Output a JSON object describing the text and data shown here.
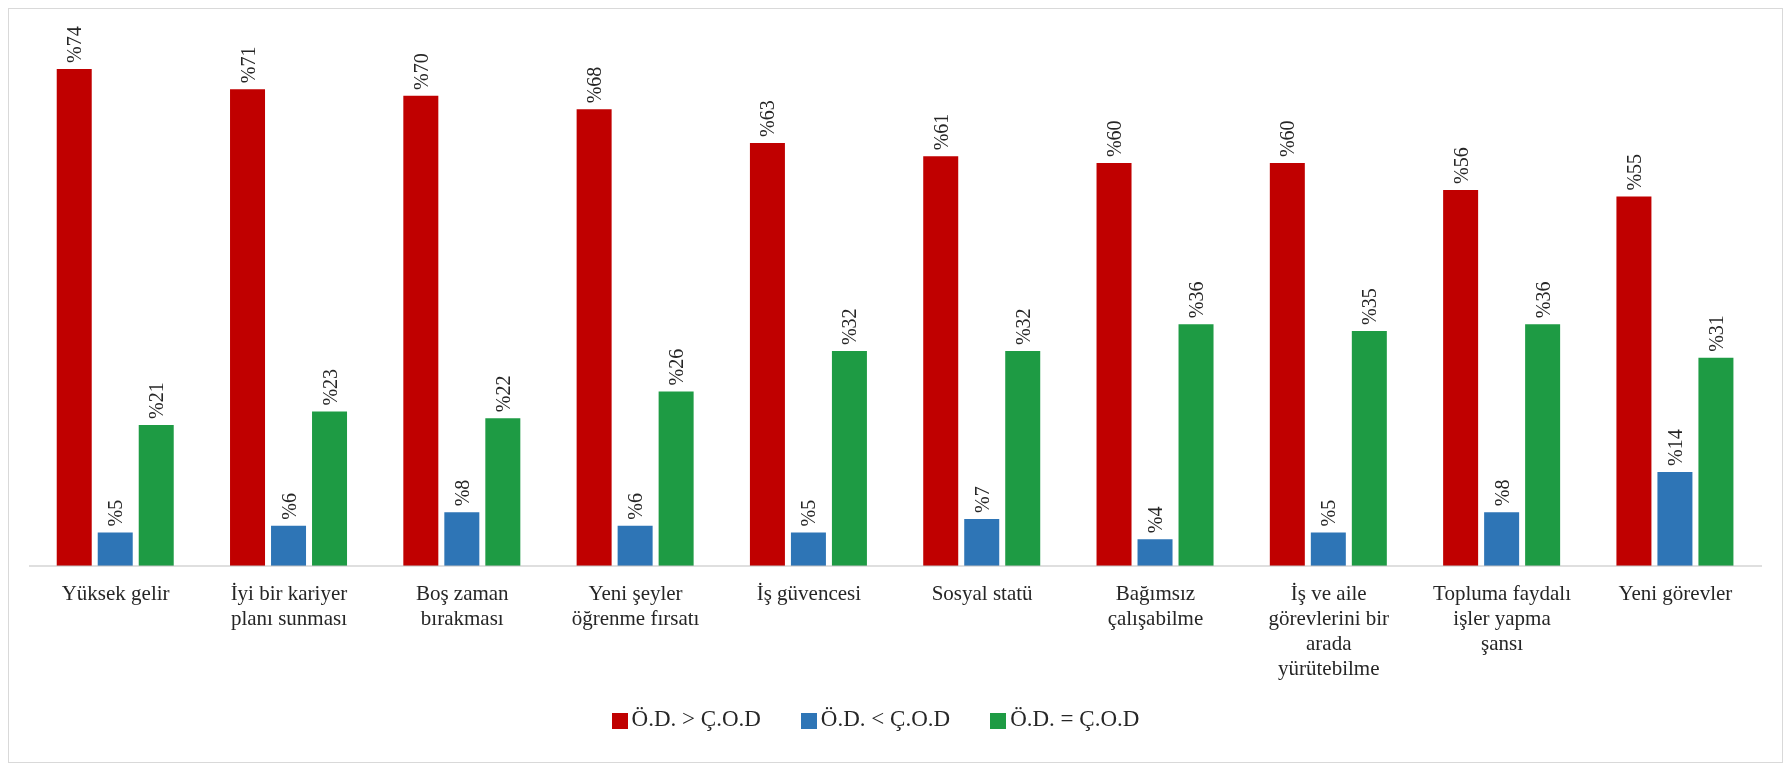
{
  "chart_data": {
    "type": "bar",
    "categories": [
      "Yüksek gelir",
      "İyi bir kariyer planı sunması",
      "Boş zaman bırakması",
      "Yeni şeyler öğrenme fırsatı",
      "İş güvencesi",
      "Sosyal statü",
      "Bağımsız çalışabilme",
      "İş ve aile görevlerini bir arada yürütebilme",
      "Topluma faydalı işler yapma şansı",
      "Yeni görevler"
    ],
    "series": [
      {
        "name": "Ö.D. > Ç.O.D",
        "color": "#c00000",
        "values": [
          74,
          71,
          70,
          68,
          63,
          61,
          60,
          60,
          56,
          55
        ],
        "value_labels": [
          "%74",
          "%71",
          "%70",
          "%68",
          "%63",
          "%61",
          "%60",
          "%60",
          "%56",
          "%55"
        ]
      },
      {
        "name": "Ö.D. < Ç.O.D",
        "color": "#2e75b6",
        "values": [
          5,
          6,
          8,
          6,
          5,
          7,
          4,
          5,
          8,
          14
        ],
        "value_labels": [
          "%5",
          "%6",
          "%8",
          "%6",
          "%5",
          "%7",
          "%4",
          "%5",
          "%8",
          "%14"
        ]
      },
      {
        "name": "Ö.D. = Ç.O.D",
        "color": "#1e9b44",
        "values": [
          21,
          23,
          22,
          26,
          32,
          32,
          36,
          35,
          36,
          31
        ],
        "value_labels": [
          "%21",
          "%23",
          "%22",
          "%26",
          "%32",
          "%32",
          "%36",
          "%35",
          "%36",
          "%31"
        ]
      }
    ],
    "legend": "bottom",
    "grid": false
  }
}
